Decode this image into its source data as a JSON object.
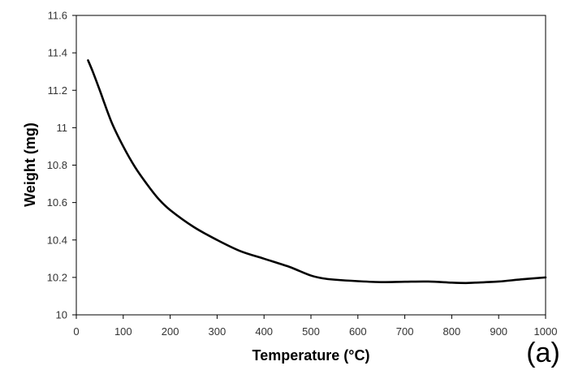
{
  "chart_data": {
    "type": "line",
    "title": "",
    "xlabel": "Temperature (°C)",
    "ylabel": "Weight (mg)",
    "panel_label": "(a)",
    "xlim": [
      0,
      1000
    ],
    "ylim": [
      10,
      11.6
    ],
    "xticks": [
      0,
      100,
      200,
      300,
      400,
      500,
      600,
      700,
      800,
      900,
      1000
    ],
    "yticks": [
      10,
      10.2,
      10.4,
      10.6,
      10.8,
      11,
      11.2,
      11.4,
      11.6
    ],
    "ytick_labels": [
      "10",
      "10.2",
      "10.4",
      "10.6",
      "10.8",
      "11",
      "11.2",
      "11.4",
      "11.6"
    ],
    "grid": false,
    "legend": "none",
    "series": [
      {
        "color": "#000000",
        "x": [
          25,
          35,
          50,
          75,
          100,
          125,
          150,
          175,
          200,
          250,
          300,
          350,
          400,
          450,
          475,
          500,
          525,
          550,
          600,
          650,
          700,
          750,
          800,
          830,
          850,
          900,
          950,
          1000
        ],
        "y": [
          11.36,
          11.3,
          11.2,
          11.03,
          10.9,
          10.79,
          10.7,
          10.62,
          10.56,
          10.47,
          10.4,
          10.34,
          10.3,
          10.26,
          10.235,
          10.21,
          10.195,
          10.188,
          10.18,
          10.175,
          10.177,
          10.178,
          10.172,
          10.17,
          10.172,
          10.178,
          10.19,
          10.2
        ]
      }
    ]
  }
}
